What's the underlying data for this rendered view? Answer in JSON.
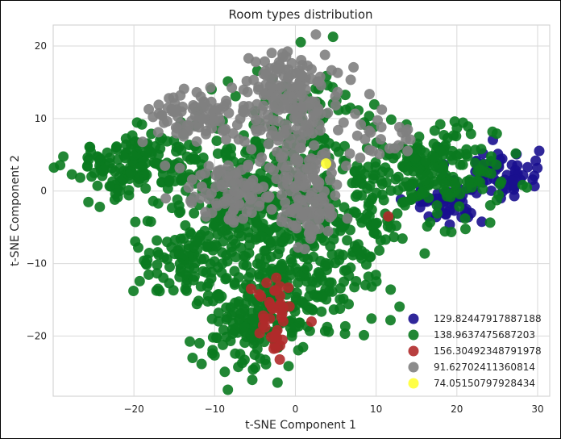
{
  "chart_data": {
    "type": "scatter",
    "title": "Room types distribution",
    "xlabel": "t-SNE Component 1",
    "ylabel": "t-SNE Component 2",
    "xlim": [
      -30,
      31.5
    ],
    "ylim": [
      -28.3,
      22.9
    ],
    "xticks": [
      -20,
      -10,
      0,
      10,
      20,
      30
    ],
    "yticks": [
      20,
      10,
      0,
      -10,
      -20
    ],
    "grid": true,
    "legend_position": "bottom-right",
    "series": [
      {
        "name": "129.82447917887188",
        "color": "#1a0f8f",
        "clusters": [
          {
            "cx": 24.5,
            "cy": 2.5,
            "sx": 2.8,
            "sy": 1.8,
            "n": 70
          },
          {
            "cx": 18.5,
            "cy": -1.5,
            "sx": 2.5,
            "sy": 1.5,
            "n": 45
          }
        ]
      },
      {
        "name": "138.9637475687203",
        "color": "#0a7a1f",
        "clusters": [
          {
            "cx": -19,
            "cy": 3.5,
            "sx": 4.5,
            "sy": 2.2,
            "n": 170
          },
          {
            "cx": -5,
            "cy": 0,
            "sx": 5,
            "sy": 5,
            "n": 240
          },
          {
            "cx": -1,
            "cy": -10,
            "sx": 6,
            "sy": 5,
            "n": 280
          },
          {
            "cx": -5,
            "cy": -19,
            "sx": 3.5,
            "sy": 3,
            "n": 120
          },
          {
            "cx": 17,
            "cy": 2.5,
            "sx": 4,
            "sy": 3,
            "n": 200
          },
          {
            "cx": 7,
            "cy": -3,
            "sx": 3,
            "sy": 4,
            "n": 80
          },
          {
            "cx": -14,
            "cy": -9,
            "sx": 3,
            "sy": 3,
            "n": 80
          },
          {
            "cx": 2,
            "cy": 8,
            "sx": 4,
            "sy": 4,
            "n": 90
          }
        ]
      },
      {
        "name": "156.30492348791978",
        "color": "#b02a2a",
        "clusters": [
          {
            "cx": -2.5,
            "cy": -16.5,
            "sx": 1.0,
            "sy": 2.2,
            "n": 30
          },
          {
            "cx": -2.5,
            "cy": -20.5,
            "sx": 0.7,
            "sy": 0.8,
            "n": 9
          }
        ],
        "points": [
          {
            "x": 11.5,
            "y": -3.5
          },
          {
            "x": 2.0,
            "y": -18.0
          },
          {
            "x": -5.5,
            "y": -13.5
          },
          {
            "x": -4.0,
            "y": -18.5
          }
        ]
      },
      {
        "name": "91.62702411360814",
        "color": "#808080",
        "clusters": [
          {
            "cx": 0,
            "cy": 12,
            "sx": 3,
            "sy": 3.5,
            "n": 160
          },
          {
            "cx": -3,
            "cy": 15,
            "sx": 1.5,
            "sy": 2.5,
            "n": 30
          },
          {
            "cx": -8,
            "cy": 0,
            "sx": 3,
            "sy": 2.2,
            "n": 90
          },
          {
            "cx": 1,
            "cy": 1,
            "sx": 2,
            "sy": 4,
            "n": 90
          },
          {
            "cx": -12,
            "cy": 10,
            "sx": 3.5,
            "sy": 2,
            "n": 90
          },
          {
            "cx": 2,
            "cy": -4,
            "sx": 2.5,
            "sy": 1.5,
            "n": 35
          },
          {
            "cx": 11,
            "cy": 7,
            "sx": 2.5,
            "sy": 2,
            "n": 25
          }
        ]
      },
      {
        "name": "74.05150797928434",
        "color": "#ffff33",
        "points": [
          {
            "x": 3.8,
            "y": 3.8
          }
        ]
      }
    ]
  }
}
